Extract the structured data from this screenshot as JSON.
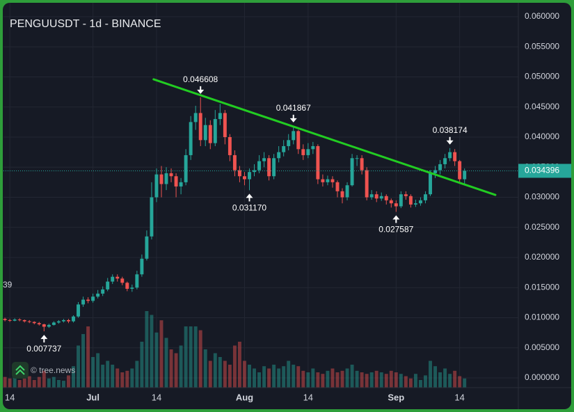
{
  "chart_data": {
    "type": "candlestick",
    "title": "PENGUUSDT - 1d - BINANCE",
    "watermark": "© tree.news",
    "clipped_label": "39",
    "x": [
      -1,
      0,
      1,
      2,
      3,
      4,
      5,
      6,
      7,
      8,
      9,
      10,
      11,
      12,
      13,
      14,
      15,
      16,
      17,
      18,
      19,
      20,
      21,
      22,
      23,
      24,
      25,
      26,
      27,
      28,
      29,
      30,
      31,
      32,
      33,
      34,
      35,
      36,
      37,
      38,
      39,
      40,
      41,
      42,
      43,
      44,
      45,
      46,
      47,
      48,
      49,
      50,
      51,
      52,
      53,
      54,
      55,
      56,
      57,
      58,
      59,
      60,
      61,
      62,
      63,
      64,
      65,
      66,
      67,
      68,
      69,
      70,
      71,
      72,
      73,
      74,
      75,
      76,
      77,
      78,
      79,
      80,
      81,
      82,
      83,
      84,
      85,
      86,
      87,
      88,
      89,
      90,
      91,
      92,
      93
    ],
    "open": [
      0.0098,
      0.0096,
      0.0095,
      0.0097,
      0.0096,
      0.0094,
      0.0093,
      0.0091,
      0.0089,
      0.0085,
      0.0088,
      0.0092,
      0.0094,
      0.0096,
      0.0094,
      0.0102,
      0.0122,
      0.013,
      0.0128,
      0.0135,
      0.014,
      0.0147,
      0.016,
      0.0168,
      0.0165,
      0.0158,
      0.0148,
      0.015,
      0.0172,
      0.0198,
      0.0235,
      0.03,
      0.0338,
      0.0322,
      0.034,
      0.0335,
      0.0318,
      0.0325,
      0.037,
      0.0425,
      0.044,
      0.0395,
      0.042,
      0.039,
      0.043,
      0.044,
      0.04,
      0.037,
      0.0345,
      0.0335,
      0.033,
      0.0342,
      0.0345,
      0.036,
      0.0365,
      0.0335,
      0.0365,
      0.0375,
      0.0385,
      0.0395,
      0.041,
      0.038,
      0.037,
      0.038,
      0.0385,
      0.033,
      0.0325,
      0.033,
      0.0325,
      0.031,
      0.03,
      0.032,
      0.0365,
      0.0365,
      0.0345,
      0.03,
      0.0305,
      0.0298,
      0.0302,
      0.0295,
      0.029,
      0.0285,
      0.0305,
      0.0302,
      0.0288,
      0.029,
      0.0295,
      0.0305,
      0.034,
      0.0345,
      0.0355,
      0.0365,
      0.0375,
      0.036,
      0.033
    ],
    "high": [
      0.01,
      0.0098,
      0.0099,
      0.0099,
      0.0097,
      0.0096,
      0.0094,
      0.0093,
      0.009,
      0.009,
      0.0094,
      0.0096,
      0.0098,
      0.0098,
      0.0104,
      0.0126,
      0.0135,
      0.0134,
      0.014,
      0.0146,
      0.0152,
      0.0166,
      0.0172,
      0.0172,
      0.0168,
      0.016,
      0.0155,
      0.0178,
      0.0205,
      0.0245,
      0.0325,
      0.0348,
      0.0352,
      0.035,
      0.0348,
      0.034,
      0.0332,
      0.038,
      0.0435,
      0.0452,
      0.046608,
      0.0432,
      0.0428,
      0.0445,
      0.0455,
      0.0445,
      0.0405,
      0.0378,
      0.0352,
      0.0342,
      0.0348,
      0.0355,
      0.037,
      0.0375,
      0.037,
      0.0372,
      0.0385,
      0.0395,
      0.0405,
      0.041867,
      0.0412,
      0.0388,
      0.039,
      0.0392,
      0.0388,
      0.0338,
      0.0336,
      0.0335,
      0.0328,
      0.0315,
      0.0325,
      0.0372,
      0.037,
      0.037,
      0.035,
      0.0312,
      0.031,
      0.0308,
      0.0305,
      0.0298,
      0.0295,
      0.031,
      0.031,
      0.0305,
      0.0296,
      0.03,
      0.031,
      0.0345,
      0.0352,
      0.0362,
      0.0372,
      0.038174,
      0.038,
      0.0362,
      0.0348
    ],
    "low": [
      0.0094,
      0.0093,
      0.0094,
      0.0094,
      0.0092,
      0.0091,
      0.0089,
      0.0087,
      0.007737,
      0.0083,
      0.0087,
      0.009,
      0.0092,
      0.0091,
      0.0092,
      0.01,
      0.0118,
      0.0124,
      0.0125,
      0.0132,
      0.0136,
      0.0144,
      0.0156,
      0.016,
      0.0154,
      0.0144,
      0.0143,
      0.0147,
      0.0168,
      0.0195,
      0.023,
      0.0292,
      0.03,
      0.0312,
      0.0325,
      0.03,
      0.0305,
      0.032,
      0.0362,
      0.0412,
      0.0385,
      0.0385,
      0.038,
      0.0385,
      0.042,
      0.0388,
      0.036,
      0.0335,
      0.0325,
      0.032,
      0.03117,
      0.0335,
      0.034,
      0.035,
      0.0328,
      0.033,
      0.0358,
      0.0368,
      0.0378,
      0.0388,
      0.0372,
      0.0362,
      0.0365,
      0.0372,
      0.0322,
      0.0318,
      0.032,
      0.0316,
      0.03,
      0.029,
      0.0295,
      0.0318,
      0.0352,
      0.0338,
      0.0295,
      0.0296,
      0.0292,
      0.0294,
      0.0288,
      0.0283,
      0.027587,
      0.0282,
      0.0296,
      0.0283,
      0.0284,
      0.0286,
      0.029,
      0.0302,
      0.0332,
      0.0338,
      0.0348,
      0.036,
      0.0352,
      0.0325,
      0.0322
    ],
    "close": [
      0.0096,
      0.0095,
      0.0097,
      0.0096,
      0.0094,
      0.0093,
      0.0091,
      0.0089,
      0.0085,
      0.0088,
      0.0092,
      0.0094,
      0.0096,
      0.0094,
      0.0102,
      0.0122,
      0.013,
      0.0128,
      0.0135,
      0.014,
      0.0147,
      0.016,
      0.0168,
      0.0165,
      0.0158,
      0.0148,
      0.015,
      0.0172,
      0.0198,
      0.0235,
      0.03,
      0.0338,
      0.0322,
      0.034,
      0.0335,
      0.0318,
      0.0325,
      0.037,
      0.0425,
      0.044,
      0.0395,
      0.042,
      0.039,
      0.043,
      0.044,
      0.04,
      0.037,
      0.0345,
      0.0335,
      0.033,
      0.0342,
      0.0345,
      0.036,
      0.0365,
      0.0335,
      0.0365,
      0.0375,
      0.0385,
      0.0395,
      0.041,
      0.038,
      0.037,
      0.038,
      0.0385,
      0.033,
      0.0325,
      0.033,
      0.0325,
      0.031,
      0.03,
      0.032,
      0.0365,
      0.0365,
      0.0345,
      0.03,
      0.0305,
      0.0298,
      0.0302,
      0.0295,
      0.029,
      0.0285,
      0.0305,
      0.0302,
      0.0288,
      0.029,
      0.0295,
      0.0305,
      0.034,
      0.0345,
      0.0355,
      0.0365,
      0.0375,
      0.036,
      0.033,
      0.034396
    ],
    "volume": [
      14,
      12,
      16,
      10,
      12,
      15,
      10,
      14,
      22,
      12,
      14,
      10,
      9,
      16,
      28,
      55,
      70,
      80,
      40,
      45,
      30,
      35,
      30,
      25,
      20,
      22,
      25,
      35,
      60,
      100,
      95,
      72,
      88,
      65,
      50,
      45,
      55,
      80,
      80,
      80,
      75,
      50,
      35,
      45,
      40,
      35,
      30,
      55,
      60,
      35,
      30,
      25,
      20,
      28,
      25,
      30,
      25,
      28,
      35,
      30,
      28,
      22,
      20,
      25,
      20,
      18,
      22,
      25,
      20,
      22,
      25,
      30,
      22,
      20,
      18,
      20,
      22,
      20,
      18,
      22,
      20,
      18,
      15,
      12,
      18,
      10,
      16,
      35,
      28,
      20,
      25,
      18,
      22,
      15,
      12
    ],
    "up_color": "#26a69a",
    "down_color": "#ef5350",
    "last_price": {
      "value": 0.034396,
      "label": "0.034396"
    },
    "trendline": {
      "x": [
        29.4,
        99.3
      ],
      "y": [
        0.0496,
        0.0304
      ],
      "color": "#22cc22"
    },
    "annotations": [
      {
        "x": 7,
        "value": 0.007737,
        "label": "0.007737",
        "position": "below"
      },
      {
        "x": 39,
        "value": 0.046608,
        "label": "0.046608",
        "position": "above"
      },
      {
        "x": 49,
        "value": 0.03117,
        "label": "0.031170",
        "position": "below"
      },
      {
        "x": 58,
        "value": 0.041867,
        "label": "0.041867",
        "position": "above"
      },
      {
        "x": 79,
        "value": 0.027587,
        "label": "0.027587",
        "position": "below"
      },
      {
        "x": 90,
        "value": 0.038174,
        "label": "0.038174",
        "position": "above"
      }
    ],
    "xlim": [
      -1.3,
      104
    ],
    "xticks": [
      {
        "value": 0,
        "label": "14"
      },
      {
        "value": 17,
        "label": "Jul"
      },
      {
        "value": 30,
        "label": "14"
      },
      {
        "value": 48,
        "label": "Aug"
      },
      {
        "value": 61,
        "label": "14"
      },
      {
        "value": 79,
        "label": "Sep"
      },
      {
        "value": 92,
        "label": "14"
      }
    ],
    "ylim": [
      0,
      0.06
    ],
    "yticks": [
      {
        "value": 0,
        "label": "0.000000"
      },
      {
        "value": 0.005,
        "label": "0.005000"
      },
      {
        "value": 0.01,
        "label": "0.010000"
      },
      {
        "value": 0.015,
        "label": "0.015000"
      },
      {
        "value": 0.02,
        "label": "0.020000"
      },
      {
        "value": 0.025,
        "label": "0.025000"
      },
      {
        "value": 0.03,
        "label": "0.030000"
      },
      {
        "value": 0.035,
        "label": "0.035000"
      },
      {
        "value": 0.04,
        "label": "0.040000"
      },
      {
        "value": 0.045,
        "label": "0.045000"
      },
      {
        "value": 0.05,
        "label": "0.050000"
      },
      {
        "value": 0.055,
        "label": "0.055000"
      },
      {
        "value": 0.06,
        "label": "0.060000"
      }
    ],
    "grid": true
  }
}
